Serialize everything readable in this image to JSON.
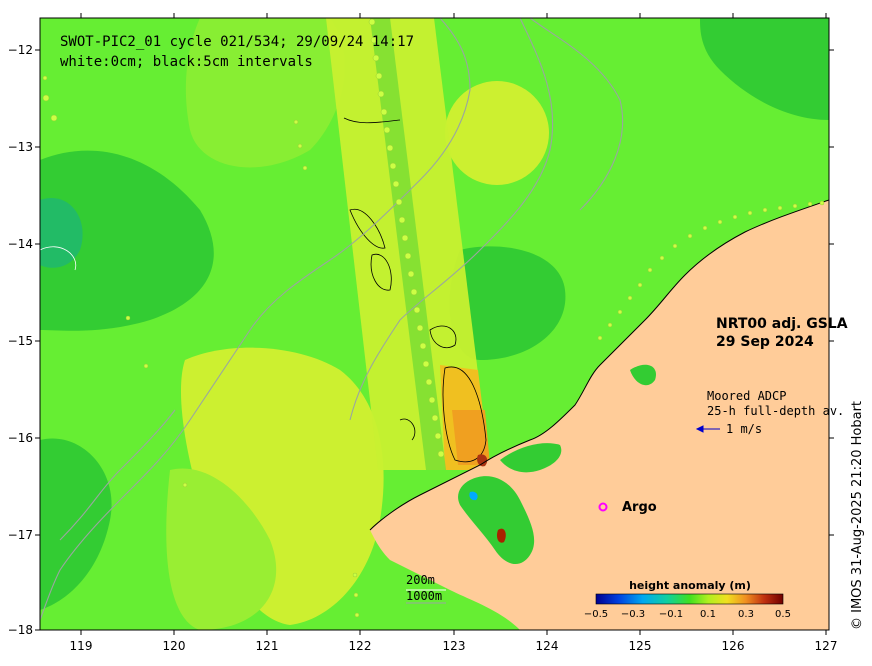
{
  "title": {
    "line1": "SWOT-PIC2_01 cycle 021/534; 29/09/24 14:17",
    "line2": "white:0cm; black:5cm intervals"
  },
  "product": {
    "line1": "NRT00 adj. GSLA",
    "line2": "29 Sep 2024"
  },
  "adcp_legend": {
    "line1": "Moored ADCP",
    "line2": "25-h full-depth av.",
    "scale_label": "1 m/s",
    "arrow_color": "#0000cc"
  },
  "argo_legend": {
    "label": "Argo",
    "marker_color": "#ff00ff"
  },
  "isobath_legend": {
    "shallow": "200m",
    "deep": "1000m"
  },
  "colorbar": {
    "title": "height anomaly (m)",
    "ticks": [
      "−0.5",
      "−0.3",
      "−0.1",
      "0.1",
      "0.3",
      "0.5"
    ],
    "range": [
      -0.5,
      0.5
    ],
    "colors": [
      "#000080",
      "#0050e0",
      "#00b0f0",
      "#10c8a0",
      "#20d020",
      "#80e030",
      "#e0f020",
      "#f0b020",
      "#e06010",
      "#b02000",
      "#700000"
    ]
  },
  "axes": {
    "x_ticks": [
      "119",
      "120",
      "121",
      "122",
      "123",
      "124",
      "125",
      "126",
      "127"
    ],
    "y_ticks": [
      "−12",
      "−13",
      "−14",
      "−15",
      "−16",
      "−17",
      "−18"
    ],
    "xlim": [
      118.6,
      127
    ],
    "ylim": [
      -18,
      -11.7
    ]
  },
  "credit": "© IMOS 31-Aug-2025 21:20 Hobart",
  "colors": {
    "land": "#ffcc99",
    "ocean_base": "#66ee33",
    "swot_swath": "#c8f030"
  }
}
